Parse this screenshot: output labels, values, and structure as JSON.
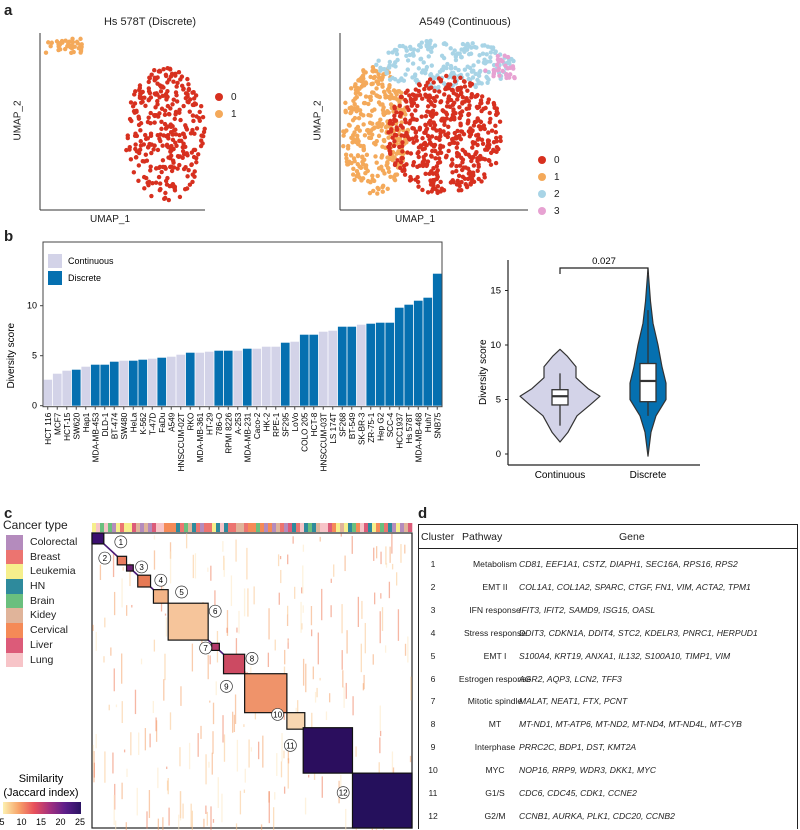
{
  "panel_labels": {
    "a": "a",
    "b": "b",
    "c": "c",
    "d": "d"
  },
  "panel_a": {
    "left": {
      "title": "Hs 578T (Discrete)",
      "xlabel": "UMAP_1",
      "ylabel": "UMAP_2",
      "legend": [
        {
          "label": "0",
          "color": "#d7301f"
        },
        {
          "label": "1",
          "color": "#f4a95a"
        }
      ]
    },
    "right": {
      "title": "A549 (Continuous)",
      "xlabel": "UMAP_1",
      "ylabel": "UMAP_2",
      "legend": [
        {
          "label": "0",
          "color": "#d7301f"
        },
        {
          "label": "1",
          "color": "#f4a95a"
        },
        {
          "label": "2",
          "color": "#a8d4e6"
        },
        {
          "label": "3",
          "color": "#e7a2d2"
        }
      ]
    }
  },
  "colors": {
    "continuous": "#d3d3e8",
    "discrete": "#0570b0"
  },
  "chart_data": [
    {
      "type": "bar",
      "ylabel": "Diversity score",
      "xlabel": "",
      "ylim": [
        0,
        13.5
      ],
      "yticks": [
        "0",
        "5",
        "10"
      ],
      "legend": [
        "Continuous",
        "Discrete"
      ],
      "legend_position": "top-left",
      "categories": [
        "HCT 116",
        "MCF7",
        "HCT-15",
        "SW620",
        "Hap1",
        "MDA-MB-453",
        "DLD-1",
        "BT-474",
        "SW480",
        "HeLa",
        "K-562",
        "T-47D",
        "FaDu",
        "A549",
        "HNSCCUM-02T",
        "RKO",
        "MDA-MB-361",
        "HT-29",
        "786-O",
        "RPMI 8226",
        "A-253",
        "MDA-MB-231",
        "Caco-2",
        "HK-2",
        "RPE-1",
        "SF295",
        "LoVo",
        "COLO 205",
        "HCT-8",
        "HNSCCUM-03T",
        "LS 174T",
        "SF268",
        "BT-549",
        "SK-BR-3",
        "ZR-75-1",
        "Hep G2",
        "SCC-4",
        "HCC1937",
        "Hs 578T",
        "MDA-MB-468",
        "Huh7",
        "SNB75"
      ],
      "values": [
        2.6,
        3.2,
        3.5,
        3.6,
        3.9,
        4.1,
        4.1,
        4.4,
        4.5,
        4.5,
        4.6,
        4.7,
        4.8,
        4.9,
        5.1,
        5.3,
        5.3,
        5.4,
        5.5,
        5.5,
        5.5,
        5.7,
        5.7,
        5.9,
        5.9,
        6.3,
        6.4,
        7.1,
        7.1,
        7.4,
        7.5,
        7.9,
        7.9,
        8.1,
        8.2,
        8.3,
        8.3,
        9.8,
        10.1,
        10.5,
        10.8,
        13.2
      ],
      "group": [
        "C",
        "C",
        "C",
        "D",
        "C",
        "D",
        "D",
        "D",
        "C",
        "D",
        "D",
        "C",
        "D",
        "C",
        "C",
        "D",
        "C",
        "C",
        "D",
        "D",
        "C",
        "D",
        "C",
        "C",
        "C",
        "D",
        "C",
        "D",
        "D",
        "C",
        "C",
        "D",
        "D",
        "C",
        "D",
        "D",
        "D",
        "D",
        "D",
        "D",
        "D",
        "D"
      ]
    },
    {
      "type": "violin",
      "ylabel": "Diversity score",
      "ylim": [
        0,
        17
      ],
      "yticks": [
        "0",
        "5",
        "10",
        "15"
      ],
      "categories": [
        "Continuous",
        "Discrete"
      ],
      "pvalue": "0.027",
      "series": [
        {
          "name": "Continuous",
          "min": 1.1,
          "whisker_low": 2.6,
          "q1": 4.5,
          "median": 5.3,
          "q3": 5.9,
          "whisker_high": 7.4,
          "max": 9.6
        },
        {
          "name": "Discrete",
          "min": -0.2,
          "whisker_low": 3.5,
          "q1": 4.8,
          "median": 6.7,
          "q3": 8.3,
          "whisker_high": 13.2,
          "max": 17.0
        }
      ]
    },
    {
      "type": "heatmap",
      "title": "Similarity\n(Jaccard index)",
      "colorbar_title_1": "Similarity",
      "colorbar_title_2": "(Jaccard index)",
      "colorbar_ticks": [
        "5",
        "10",
        "15",
        "20",
        "25"
      ],
      "clusters": [
        "1",
        "2",
        "3",
        "4",
        "5",
        "6",
        "7",
        "8",
        "9",
        "10",
        "11",
        "12"
      ]
    }
  ],
  "cancer_type": {
    "title": "Cancer type",
    "items": [
      {
        "label": "Colorectal",
        "color": "#b48bbd"
      },
      {
        "label": "Breast",
        "color": "#ec7470"
      },
      {
        "label": "Leukemia",
        "color": "#f6ef8c"
      },
      {
        "label": "HN",
        "color": "#2e8a9c"
      },
      {
        "label": "Brain",
        "color": "#6abf7e"
      },
      {
        "label": "Kidey",
        "color": "#e0b49a"
      },
      {
        "label": "Cervical",
        "color": "#f58a57"
      },
      {
        "label": "Liver",
        "color": "#dc5b79"
      },
      {
        "label": "Lung",
        "color": "#f7c4c8"
      }
    ]
  },
  "table": {
    "headers": {
      "cluster": "Cluster",
      "pathway": "Pathway",
      "gene": "Gene"
    },
    "rows": [
      {
        "cluster": "1",
        "pathway": "Metabolism",
        "genes": "CD81, EEF1A1, CSTZ, DIAPH1, SEC16A, RPS16, RPS2"
      },
      {
        "cluster": "2",
        "pathway": "EMT II",
        "genes": "COL1A1, COL1A2, SPARC, CTGF, FN1, VIM, ACTA2, TPM1"
      },
      {
        "cluster": "3",
        "pathway": "IFN response",
        "genes": "IFIT3, IFIT2, SAMD9, ISG15, OASL"
      },
      {
        "cluster": "4",
        "pathway": "Stress response",
        "genes": "DDIT3, CDKN1A, DDIT4, STC2, KDELR3, PNRC1, HERPUD1"
      },
      {
        "cluster": "5",
        "pathway": "EMT I",
        "genes": "S100A4, KRT19, ANXA1, IL132, S100A10, TIMP1, VIM"
      },
      {
        "cluster": "6",
        "pathway": "Estrogen response",
        "genes": "AGR2, AQP3, LCN2, TFF3"
      },
      {
        "cluster": "7",
        "pathway": "Mitotic spindle",
        "genes": "MALAT, NEAT1, FTX, PCNT"
      },
      {
        "cluster": "8",
        "pathway": "MT",
        "genes": "MT-ND1, MT-ATP6, MT-ND2, MT-ND4, MT-ND4L, MT-CYB"
      },
      {
        "cluster": "9",
        "pathway": "Interphase",
        "genes": "PRRC2C, BDP1, DST, KMT2A"
      },
      {
        "cluster": "10",
        "pathway": "MYC",
        "genes": "NOP16, RRP9, WDR3, DKK1, MYC"
      },
      {
        "cluster": "11",
        "pathway": "G1/S",
        "genes": "CDC6, CDC45, CDK1, CCNE2"
      },
      {
        "cluster": "12",
        "pathway": "G2/M",
        "genes": "CCNB1, AURKA, PLK1, CDC20, CCNB2"
      }
    ]
  }
}
